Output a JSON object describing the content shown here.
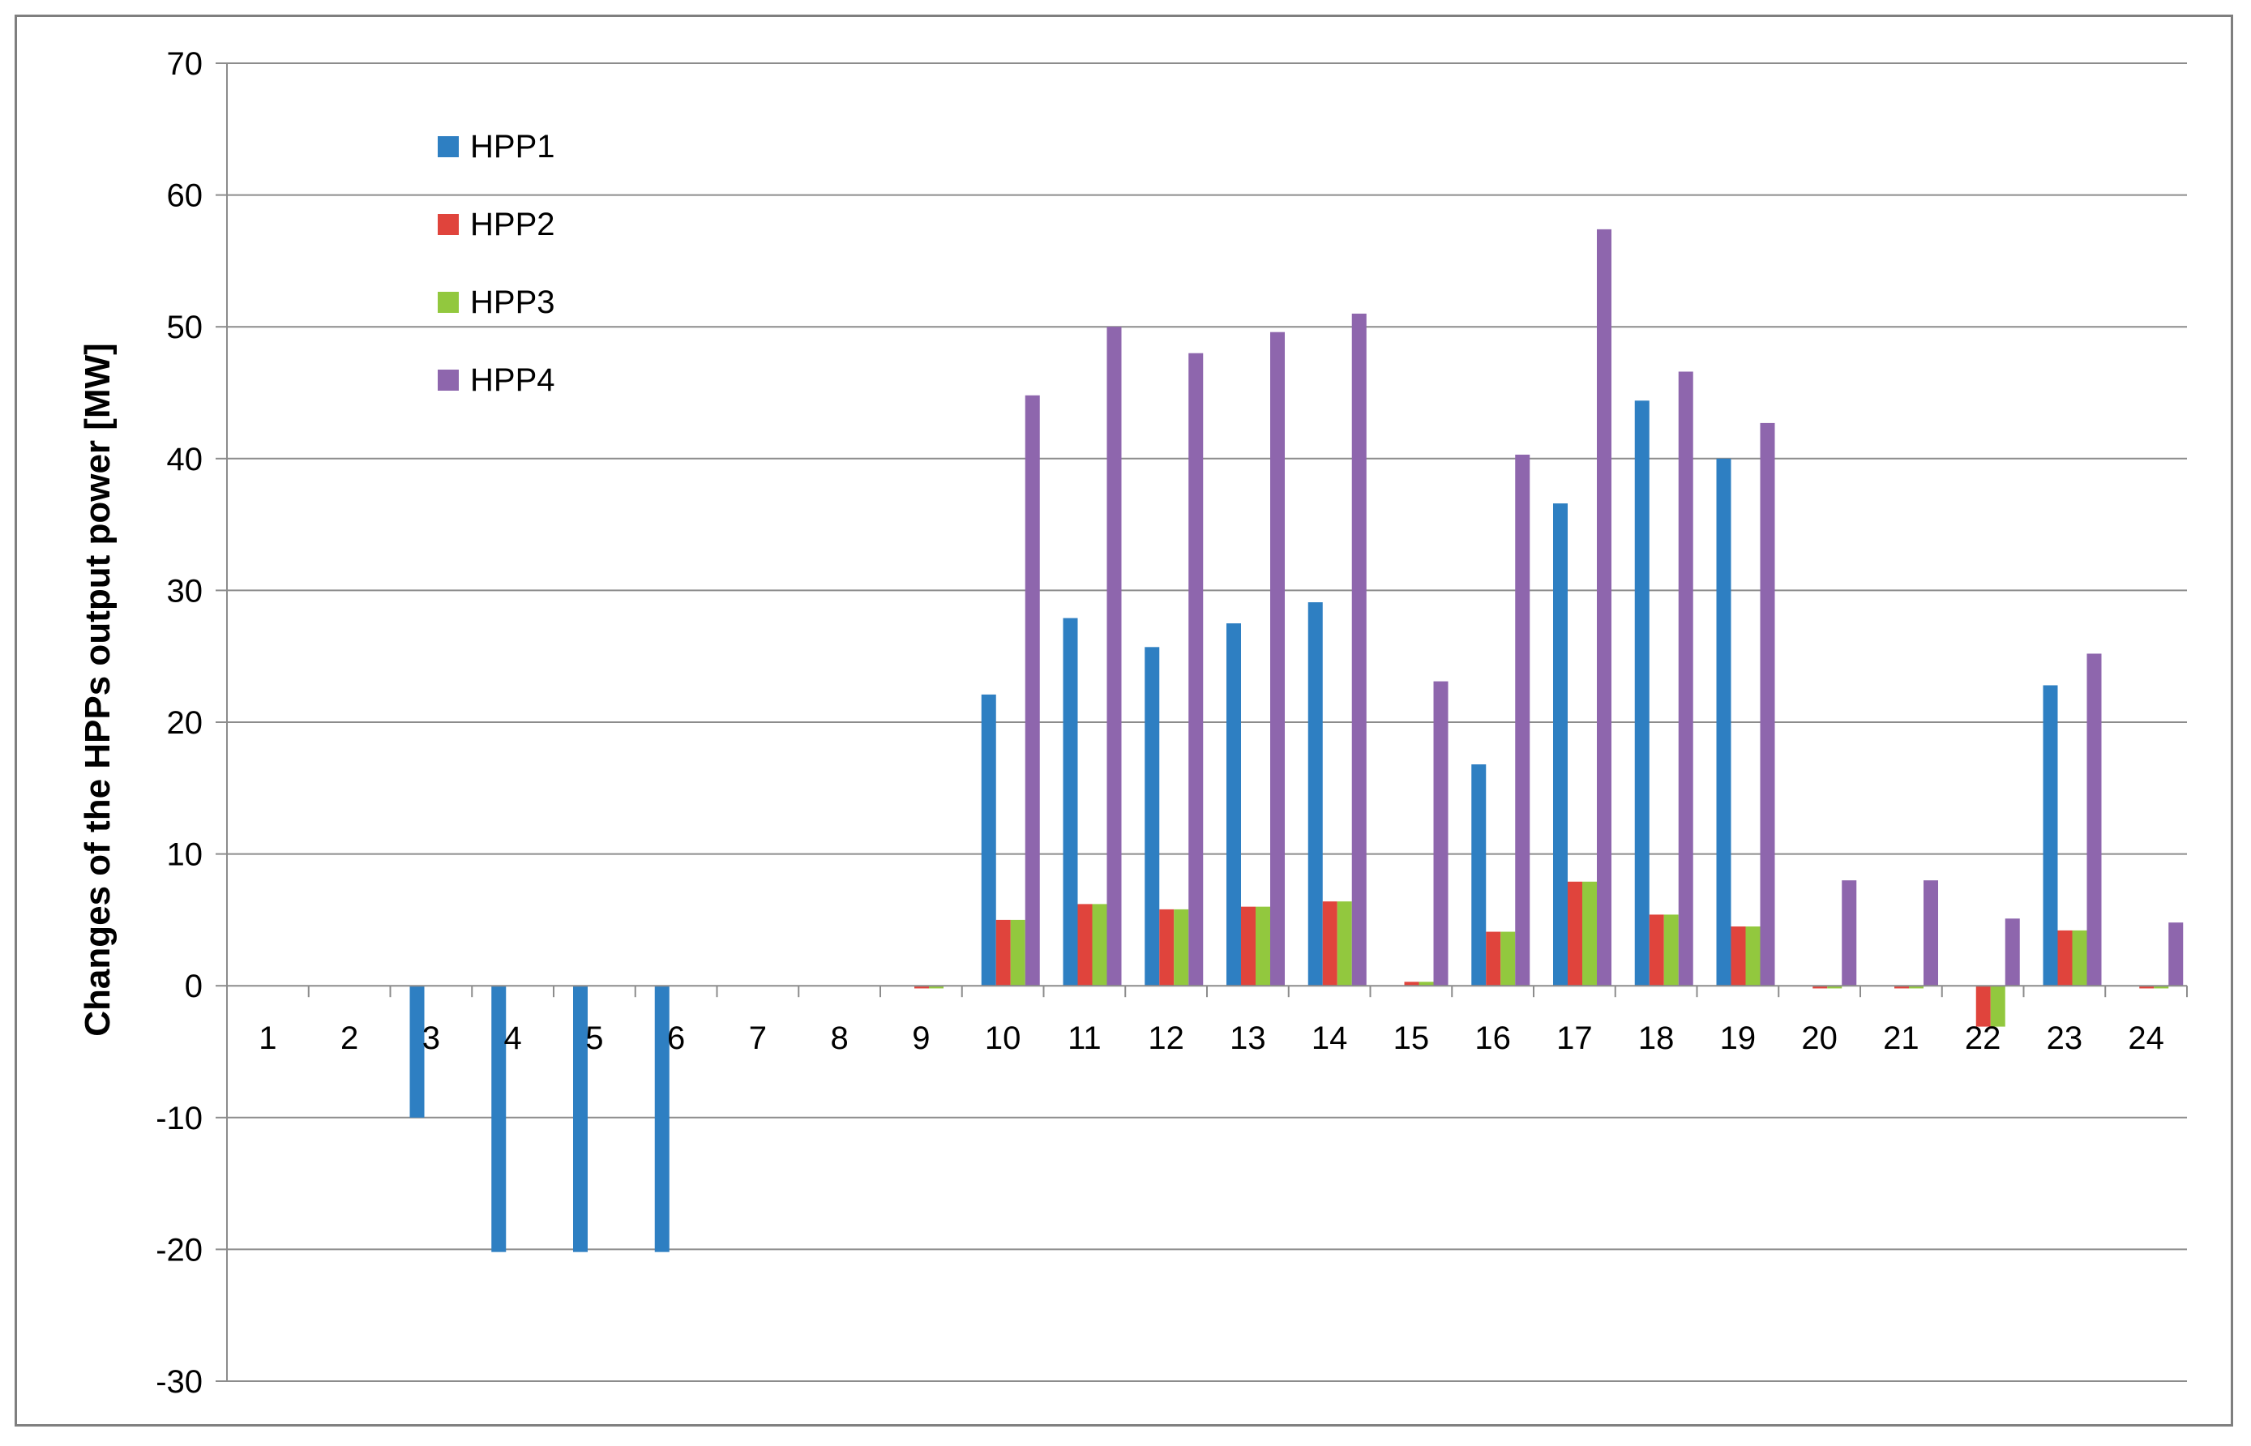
{
  "chart_data": {
    "type": "bar",
    "ylabel": "Changes of the HPPs output power  [MW]",
    "xlabel": "",
    "ylim": [
      -30,
      70
    ],
    "yticks": [
      70,
      60,
      50,
      40,
      30,
      20,
      10,
      0,
      -10,
      -20,
      -30
    ],
    "grid": true,
    "legend_position": "top-left",
    "categories": [
      "1",
      "2",
      "3",
      "4",
      "5",
      "6",
      "7",
      "8",
      "9",
      "10",
      "11",
      "12",
      "13",
      "14",
      "15",
      "16",
      "17",
      "18",
      "19",
      "20",
      "21",
      "22",
      "23",
      "24"
    ],
    "series": [
      {
        "name": "HPP1",
        "color": "#2e7fc2",
        "values": [
          0,
          0,
          -10,
          -20.2,
          -20.2,
          -20.2,
          0,
          0,
          0,
          22.1,
          27.9,
          25.7,
          27.5,
          29.1,
          0,
          16.8,
          36.6,
          44.4,
          40,
          0,
          0,
          0,
          22.8,
          0
        ]
      },
      {
        "name": "HPP2",
        "color": "#e0443c",
        "values": [
          0,
          0,
          0,
          0,
          0,
          0,
          0,
          0,
          -0.2,
          5,
          6.2,
          5.8,
          6,
          6.4,
          0.3,
          4.1,
          7.9,
          5.4,
          4.5,
          -0.2,
          -0.2,
          -3.1,
          4.2,
          -0.2
        ]
      },
      {
        "name": "HPP3",
        "color": "#92c83e",
        "values": [
          0,
          0,
          0,
          0,
          0,
          0,
          0,
          0,
          -0.2,
          5,
          6.2,
          5.8,
          6,
          6.4,
          0.3,
          4.1,
          7.9,
          5.4,
          4.5,
          -0.2,
          -0.2,
          -3.1,
          4.2,
          -0.2
        ]
      },
      {
        "name": "HPP4",
        "color": "#8e66ad",
        "values": [
          0,
          0,
          0,
          0,
          0,
          0,
          0,
          0,
          0,
          44.8,
          50,
          48,
          49.6,
          51,
          23.1,
          40.3,
          57.4,
          46.6,
          42.7,
          8,
          8,
          5.1,
          25.2,
          4.8
        ]
      }
    ]
  }
}
